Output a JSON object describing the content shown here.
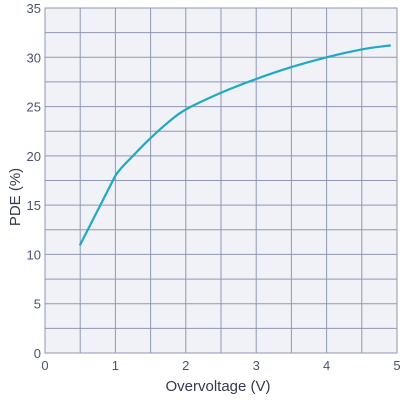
{
  "chart_data": {
    "type": "line",
    "title": "",
    "xlabel": "Overvoltage (V)",
    "ylabel": "PDE (%)",
    "xlim": [
      0,
      5
    ],
    "ylim": [
      0,
      35
    ],
    "x_ticks": [
      0,
      1,
      2,
      3,
      4,
      5
    ],
    "y_ticks": [
      0,
      5,
      10,
      15,
      20,
      25,
      30,
      35
    ],
    "x_tick_labels": [
      "0",
      "1",
      "2",
      "3",
      "4",
      "5"
    ],
    "y_tick_labels": [
      "0",
      "5",
      "10",
      "15",
      "20",
      "25",
      "30",
      "35"
    ],
    "grid": true,
    "grid_step_x": 0.5,
    "grid_step_y": 2.5,
    "colors": {
      "line": "#1ea9c4",
      "grid": "#8f97b3",
      "plot_bg": "#f1f2f8"
    },
    "series": [
      {
        "x": [
          0.5,
          0.75,
          1.0,
          1.25,
          1.5,
          1.75,
          2.0,
          2.5,
          3.0,
          3.5,
          4.0,
          4.5,
          4.9
        ],
        "values": [
          11.0,
          14.7,
          18.0,
          20.0,
          21.8,
          23.4,
          24.7,
          26.4,
          27.8,
          29.0,
          30.0,
          30.8,
          31.2
        ]
      }
    ]
  }
}
